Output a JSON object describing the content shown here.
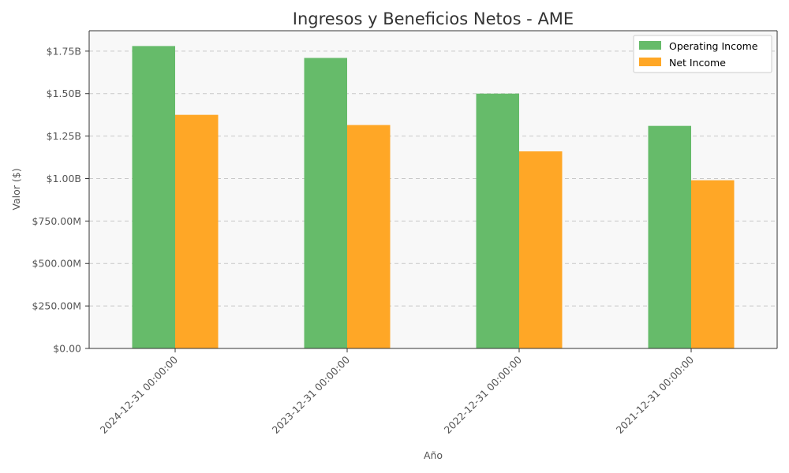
{
  "chart_data": {
    "type": "bar",
    "title": "Ingresos y Beneficios Netos - AME",
    "xlabel": "Año",
    "ylabel": "Valor ($)",
    "categories": [
      "2024-12-31 00:00:00",
      "2023-12-31 00:00:00",
      "2022-12-31 00:00:00",
      "2021-12-31 00:00:00"
    ],
    "series": [
      {
        "name": "Operating Income",
        "color": "#66bb6a",
        "values": [
          1780000000,
          1710000000,
          1500000000,
          1310000000
        ]
      },
      {
        "name": "Net Income",
        "color": "#ffa726",
        "values": [
          1375000000,
          1315000000,
          1160000000,
          990000000
        ]
      }
    ],
    "ylim": [
      0,
      1870000000
    ],
    "yticks": [
      0,
      250000000,
      500000000,
      750000000,
      1000000000,
      1250000000,
      1500000000,
      1750000000
    ],
    "ytick_labels": [
      "$0.00",
      "$250.00M",
      "$500.00M",
      "$750.00M",
      "$1.00B",
      "$1.25B",
      "$1.50B",
      "$1.75B"
    ],
    "grid": "y-dashed",
    "legend_position": "top-right",
    "plot_background": "#f8f8f8"
  }
}
